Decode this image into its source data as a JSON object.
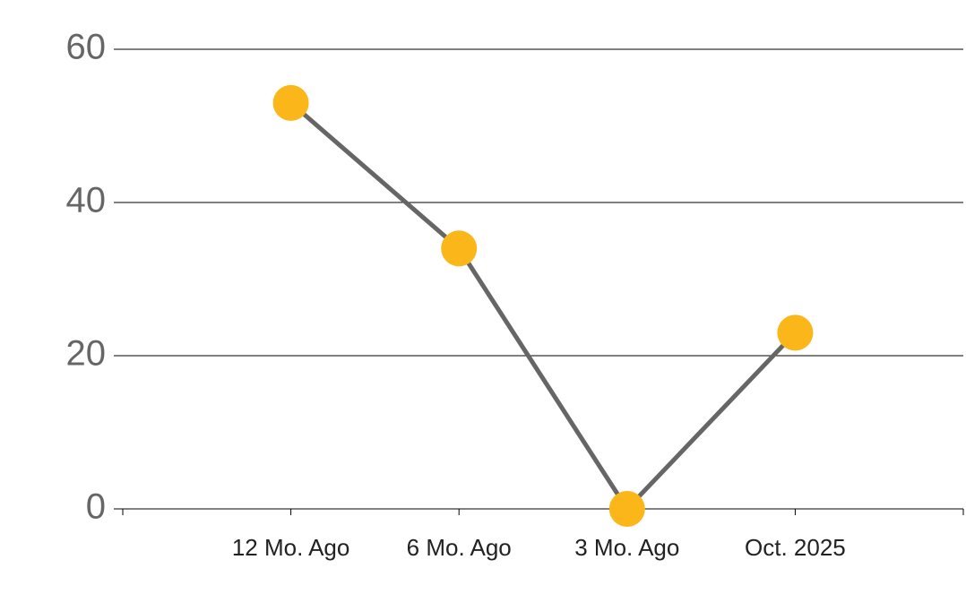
{
  "chart_data": {
    "type": "line",
    "categories": [
      "12 Mo. Ago",
      "6 Mo. Ago",
      "3 Mo. Ago",
      "Oct. 2025"
    ],
    "series": [
      {
        "values": [
          53,
          34,
          0,
          23
        ],
        "color": "#666666",
        "marker_color": "#fbb619"
      }
    ],
    "ylim": [
      0,
      60
    ],
    "yticks": [
      0,
      20,
      40,
      60
    ],
    "grid": true
  }
}
